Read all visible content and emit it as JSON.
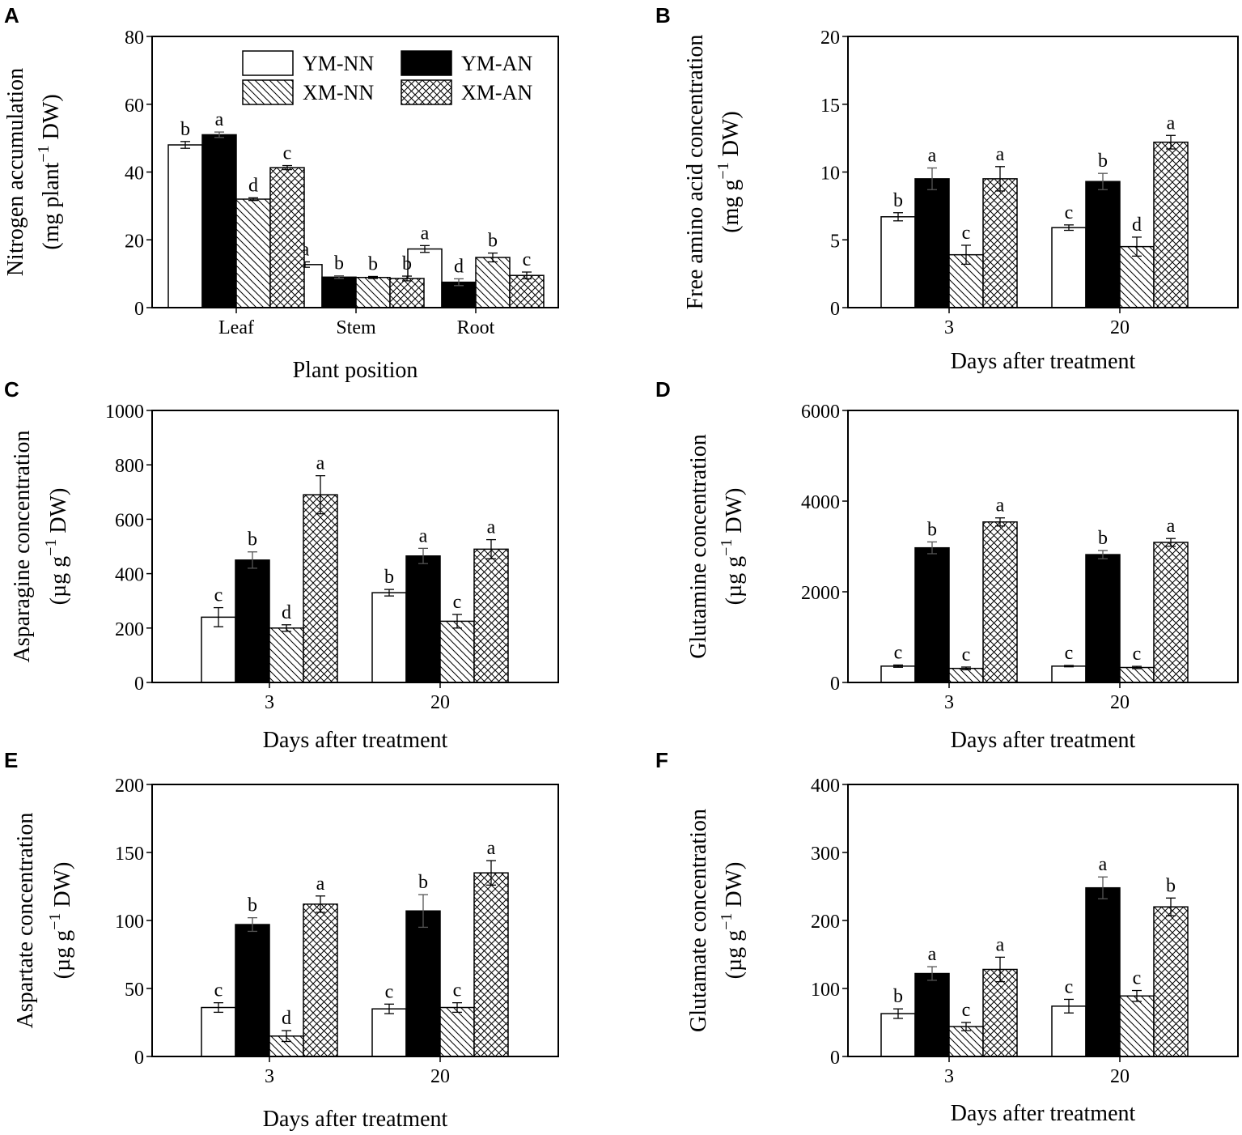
{
  "legend": [
    {
      "key": "YM-NN",
      "label": "YM-NN",
      "fill": "white"
    },
    {
      "key": "YM-AN",
      "label": "YM-AN",
      "fill": "black"
    },
    {
      "key": "XM-NN",
      "label": "XM-NN",
      "fill": "diag"
    },
    {
      "key": "XM-AN",
      "label": "XM-AN",
      "fill": "cross"
    }
  ],
  "colors": {
    "ink": "#000000",
    "background": "#ffffff"
  },
  "chart_data": [
    {
      "id": "A",
      "letter": "A",
      "type": "bar",
      "ylabel_main": "Nitrogen accumulation",
      "ylabel_unit": {
        "pre": "(mg plant",
        "sup": "−1",
        "post": " DW)"
      },
      "xlabel": "Plant position",
      "ylim": [
        0,
        80
      ],
      "yticks": [
        0,
        20,
        40,
        60,
        80
      ],
      "categories": [
        "Leaf",
        "Stem",
        "Root"
      ],
      "series": [
        {
          "name": "YM-NN",
          "values": [
            48.0,
            12.7,
            17.3
          ],
          "errors": [
            1.0,
            0.8,
            1.0
          ],
          "letters": [
            "b",
            "a",
            "a"
          ]
        },
        {
          "name": "YM-AN",
          "values": [
            51.0,
            9.0,
            7.5
          ],
          "errors": [
            0.8,
            0.4,
            1.0
          ],
          "letters": [
            "a",
            "b",
            "d"
          ]
        },
        {
          "name": "XM-NN",
          "values": [
            32.0,
            8.9,
            14.8
          ],
          "errors": [
            0.4,
            0.3,
            1.3
          ],
          "letters": [
            "d",
            "b",
            "b"
          ]
        },
        {
          "name": "XM-AN",
          "values": [
            41.3,
            8.6,
            9.5
          ],
          "errors": [
            0.6,
            0.7,
            1.0
          ],
          "letters": [
            "c",
            "b",
            "c"
          ]
        }
      ]
    },
    {
      "id": "B",
      "letter": "B",
      "type": "bar",
      "ylabel_main": "Free amino acid concentration",
      "ylabel_unit": {
        "pre": "(mg g",
        "sup": "−1",
        "post": " DW)"
      },
      "xlabel": "Days after treatment",
      "ylim": [
        0,
        20
      ],
      "yticks": [
        0,
        5,
        10,
        15,
        20
      ],
      "categories": [
        "3",
        "20"
      ],
      "series": [
        {
          "name": "YM-NN",
          "values": [
            6.7,
            5.9
          ],
          "errors": [
            0.3,
            0.2
          ],
          "letters": [
            "b",
            "c"
          ]
        },
        {
          "name": "YM-AN",
          "values": [
            9.5,
            9.3
          ],
          "errors": [
            0.8,
            0.6
          ],
          "letters": [
            "a",
            "b"
          ]
        },
        {
          "name": "XM-NN",
          "values": [
            3.9,
            4.5
          ],
          "errors": [
            0.7,
            0.7
          ],
          "letters": [
            "c",
            "d"
          ]
        },
        {
          "name": "XM-AN",
          "values": [
            9.5,
            12.2
          ],
          "errors": [
            0.9,
            0.5
          ],
          "letters": [
            "a",
            "a"
          ]
        }
      ]
    },
    {
      "id": "C",
      "letter": "C",
      "type": "bar",
      "ylabel_main": "Asparagine concentration",
      "ylabel_unit": {
        "pre": "(µg g",
        "sup": "−1",
        "post": " DW)"
      },
      "xlabel": "Days after treatment",
      "ylim": [
        0,
        1000
      ],
      "yticks": [
        0,
        200,
        400,
        600,
        800,
        1000
      ],
      "categories": [
        "3",
        "20"
      ],
      "series": [
        {
          "name": "YM-NN",
          "values": [
            240,
            330
          ],
          "errors": [
            35,
            12
          ],
          "letters": [
            "c",
            "b"
          ]
        },
        {
          "name": "YM-AN",
          "values": [
            450,
            465
          ],
          "errors": [
            30,
            28
          ],
          "letters": [
            "b",
            "a"
          ]
        },
        {
          "name": "XM-NN",
          "values": [
            200,
            225
          ],
          "errors": [
            12,
            25
          ],
          "letters": [
            "d",
            "c"
          ]
        },
        {
          "name": "XM-AN",
          "values": [
            690,
            490
          ],
          "errors": [
            70,
            35
          ],
          "letters": [
            "a",
            "a"
          ]
        }
      ]
    },
    {
      "id": "D",
      "letter": "D",
      "type": "bar",
      "ylabel_main": "Glutamine concentration",
      "ylabel_unit": {
        "pre": "(µg g",
        "sup": "−1",
        "post": " DW)"
      },
      "xlabel": "Days after treatment",
      "ylim": [
        0,
        6000
      ],
      "yticks": [
        0,
        2000,
        4000,
        6000
      ],
      "categories": [
        "3",
        "20"
      ],
      "series": [
        {
          "name": "YM-NN",
          "values": [
            360,
            360
          ],
          "errors": [
            25,
            15
          ],
          "letters": [
            "c",
            "c"
          ]
        },
        {
          "name": "YM-AN",
          "values": [
            2970,
            2820
          ],
          "errors": [
            130,
            90
          ],
          "letters": [
            "b",
            "b"
          ]
        },
        {
          "name": "XM-NN",
          "values": [
            310,
            330
          ],
          "errors": [
            30,
            25
          ],
          "letters": [
            "c",
            "c"
          ]
        },
        {
          "name": "XM-AN",
          "values": [
            3540,
            3090
          ],
          "errors": [
            90,
            85
          ],
          "letters": [
            "a",
            "a"
          ]
        }
      ]
    },
    {
      "id": "E",
      "letter": "E",
      "type": "bar",
      "ylabel_main": "Aspartate concentration",
      "ylabel_unit": {
        "pre": "(µg g",
        "sup": "−1",
        "post": " DW)"
      },
      "xlabel": "Days after treatment",
      "ylim": [
        0,
        200
      ],
      "yticks": [
        0,
        50,
        100,
        150,
        200
      ],
      "categories": [
        "3",
        "20"
      ],
      "series": [
        {
          "name": "YM-NN",
          "values": [
            36,
            35
          ],
          "errors": [
            3.5,
            3.5
          ],
          "letters": [
            "c",
            "c"
          ]
        },
        {
          "name": "YM-AN",
          "values": [
            97,
            107
          ],
          "errors": [
            5,
            12
          ],
          "letters": [
            "b",
            "b"
          ]
        },
        {
          "name": "XM-NN",
          "values": [
            15,
            36
          ],
          "errors": [
            4,
            3.5
          ],
          "letters": [
            "d",
            "c"
          ]
        },
        {
          "name": "XM-AN",
          "values": [
            112,
            135
          ],
          "errors": [
            6,
            9
          ],
          "letters": [
            "a",
            "a"
          ]
        }
      ]
    },
    {
      "id": "F",
      "letter": "F",
      "type": "bar",
      "ylabel_main": "Glutamate concentration",
      "ylabel_unit": {
        "pre": "(µg g",
        "sup": "−1",
        "post": " DW)"
      },
      "xlabel": "Days after treatment",
      "ylim": [
        0,
        400
      ],
      "yticks": [
        0,
        100,
        200,
        300,
        400
      ],
      "categories": [
        "3",
        "20"
      ],
      "series": [
        {
          "name": "YM-NN",
          "values": [
            63,
            74
          ],
          "errors": [
            7,
            10
          ],
          "letters": [
            "b",
            "c"
          ]
        },
        {
          "name": "YM-AN",
          "values": [
            122,
            248
          ],
          "errors": [
            10,
            16
          ],
          "letters": [
            "a",
            "a"
          ]
        },
        {
          "name": "XM-NN",
          "values": [
            44,
            89
          ],
          "errors": [
            6,
            8
          ],
          "letters": [
            "c",
            "c"
          ]
        },
        {
          "name": "XM-AN",
          "values": [
            128,
            220
          ],
          "errors": [
            18,
            13
          ],
          "letters": [
            "a",
            "b"
          ]
        }
      ]
    }
  ]
}
